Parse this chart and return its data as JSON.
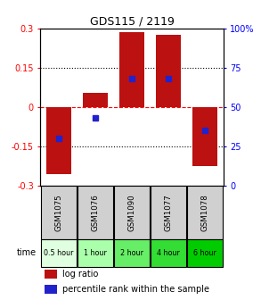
{
  "title": "GDS115 / 2119",
  "samples": [
    "GSM1075",
    "GSM1076",
    "GSM1090",
    "GSM1077",
    "GSM1078"
  ],
  "time_labels": [
    "0.5 hour",
    "1 hour",
    "2 hour",
    "4 hour",
    "6 hour"
  ],
  "log_ratios": [
    -0.255,
    0.055,
    0.285,
    0.275,
    -0.225
  ],
  "percentile_ranks": [
    30,
    43,
    68,
    68,
    35
  ],
  "bar_color": "#bb1111",
  "dot_color": "#2222cc",
  "ylim": [
    -0.3,
    0.3
  ],
  "ylim_right": [
    0,
    100
  ],
  "yticks_left": [
    -0.3,
    -0.15,
    0,
    0.15,
    0.3
  ],
  "yticks_right": [
    0,
    25,
    50,
    75,
    100
  ],
  "hlines_dotted": [
    -0.15,
    0.15
  ],
  "hline_dashed": 0,
  "sample_bg": "#d0d0d0",
  "time_colors": [
    "#e0ffe0",
    "#aaffaa",
    "#66ee66",
    "#33dd33",
    "#00cc00"
  ],
  "background_color": "#ffffff",
  "legend_bar_label": "log ratio",
  "legend_dot_label": "percentile rank within the sample"
}
